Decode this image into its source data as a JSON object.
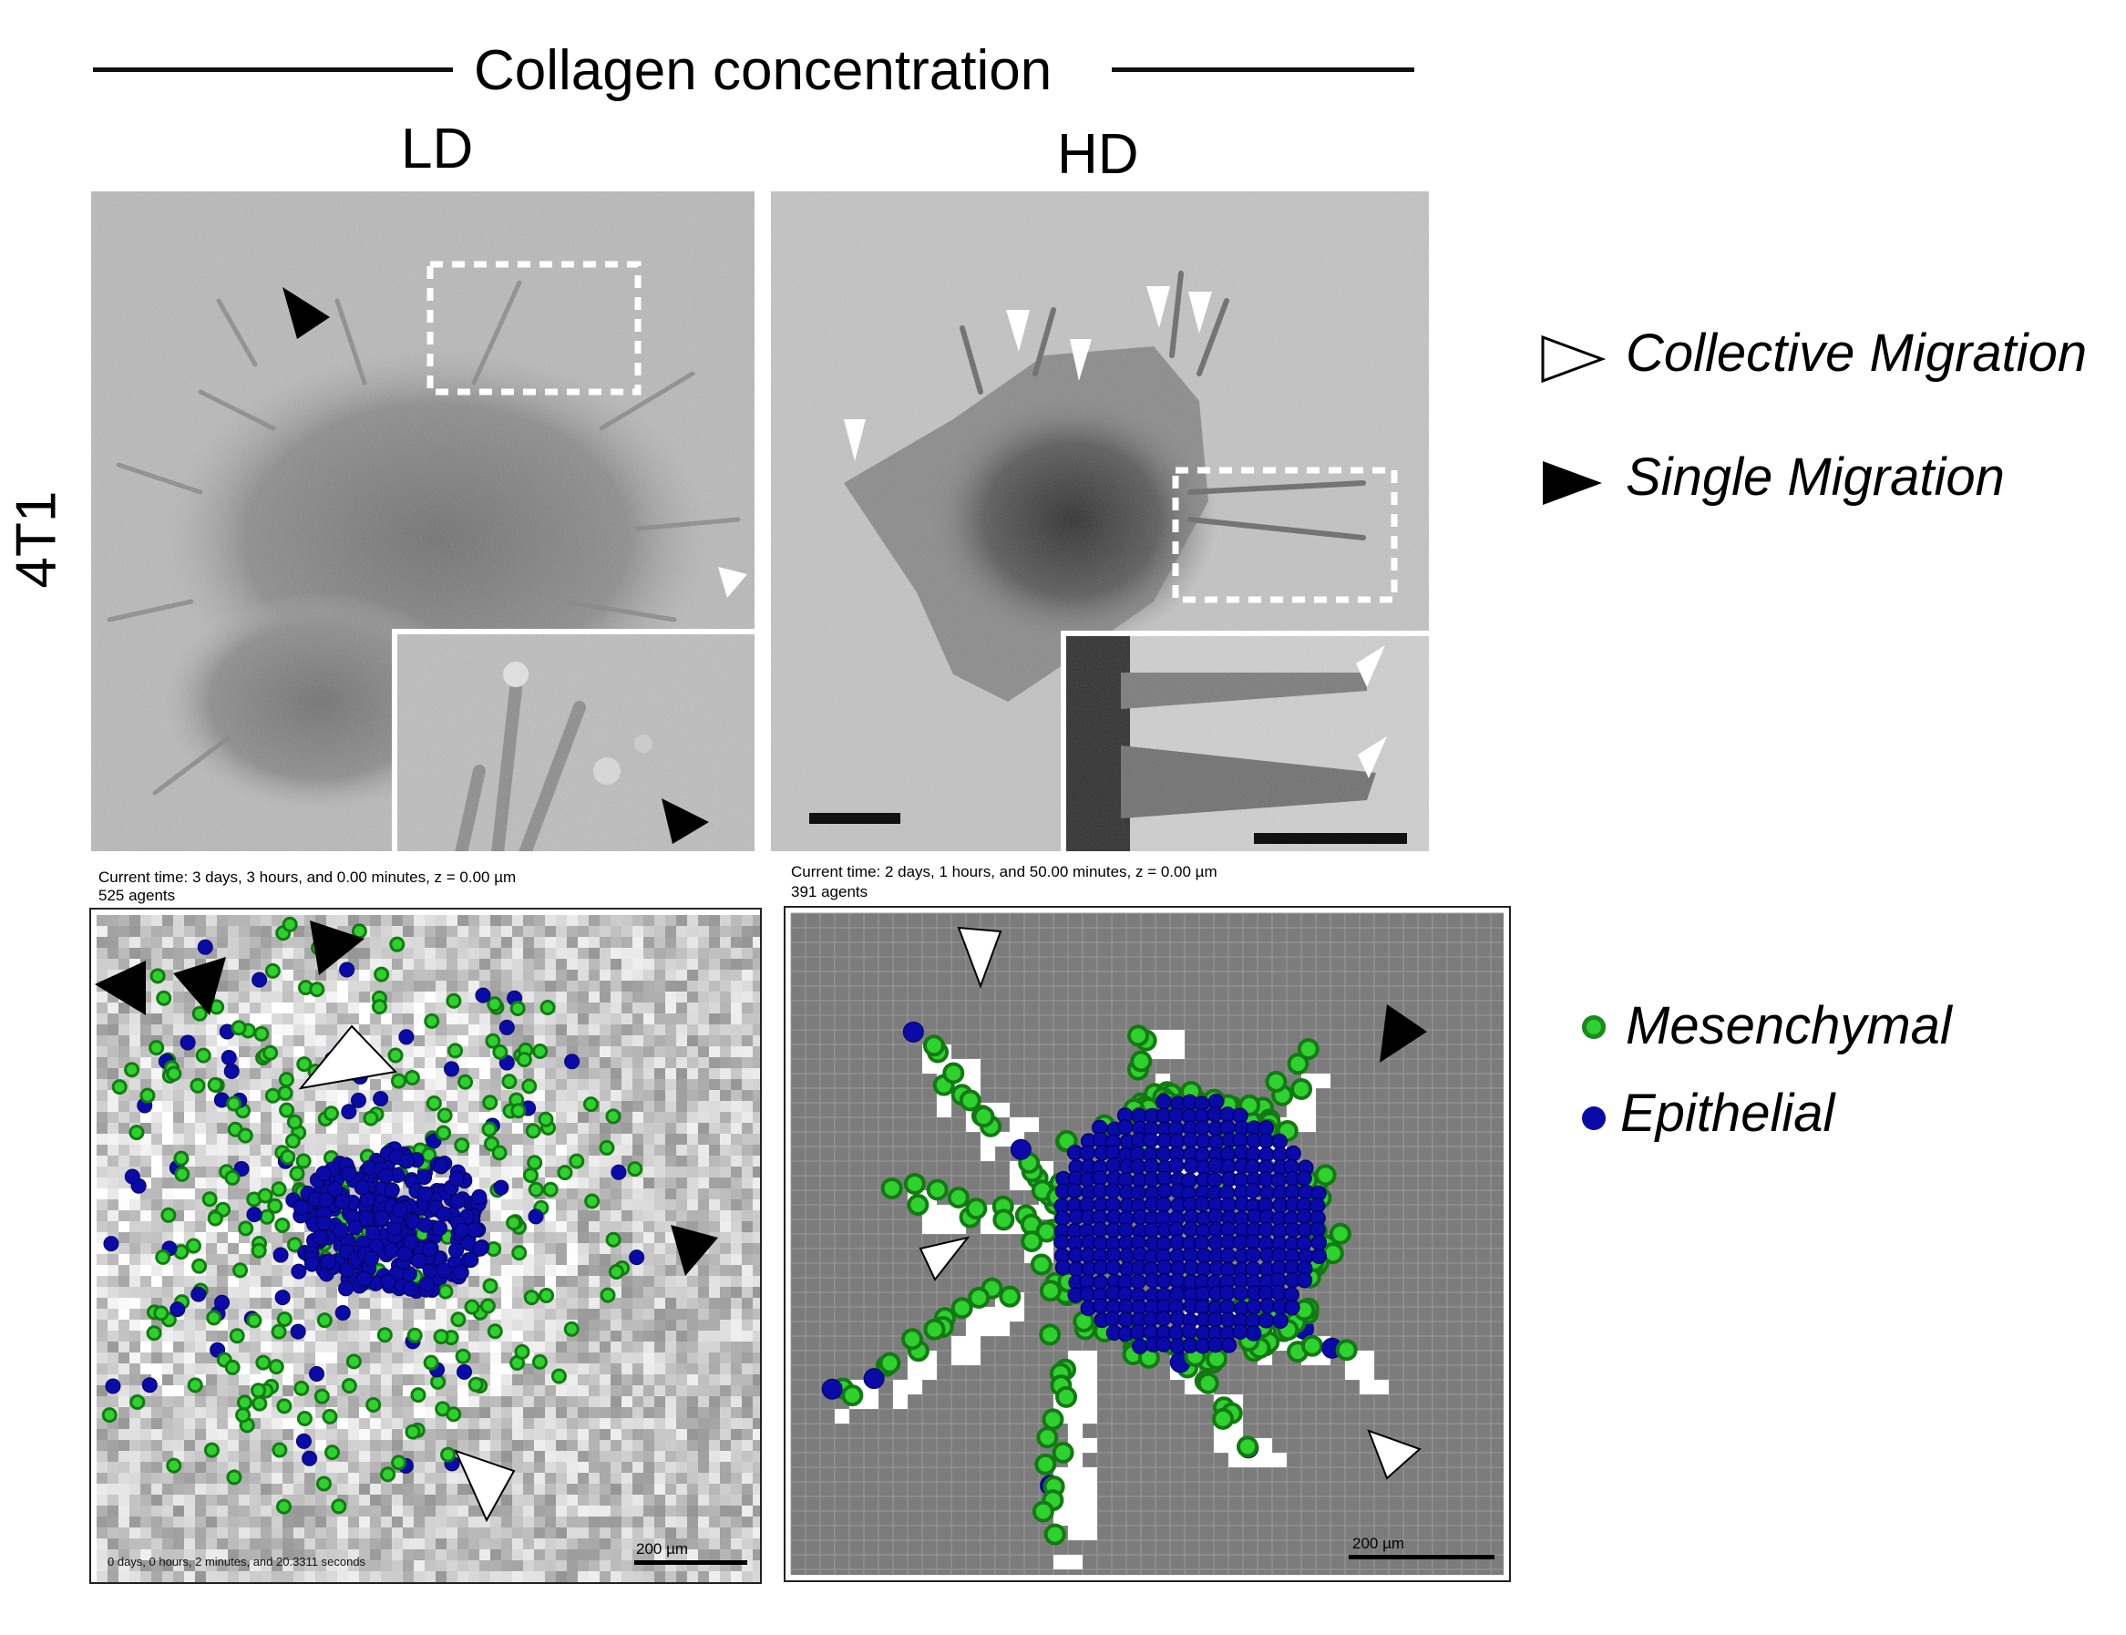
{
  "header": {
    "title": "Collagen concentration",
    "column_ld": "LD",
    "column_hd": "HD",
    "row_label": "4T1"
  },
  "sim_ld": {
    "time_text": "Current time: 3 days, 3 hours, and 0.00 minutes, z = 0.00 µm",
    "agents_text": "525 agents",
    "scale_label": "200 µm",
    "elapsed_text": "0 days, 0 hours, 2 minutes, and 20.3311 seconds"
  },
  "sim_hd": {
    "time_text": "Current time: 2 days, 1 hours, and 50.00 minutes, z = 0.00 µm",
    "agents_text": "391 agents",
    "scale_label": "200 µm"
  },
  "legend": {
    "collective": "Collective Migration",
    "single": "Single Migration",
    "mesenchymal": "Mesenchymal",
    "epithelial": "Epithelial"
  },
  "colors": {
    "mesenchymal": "#2fd12f",
    "epithelial": "#0a0aa8",
    "hd_grid_bg": "#7c7c7c"
  }
}
